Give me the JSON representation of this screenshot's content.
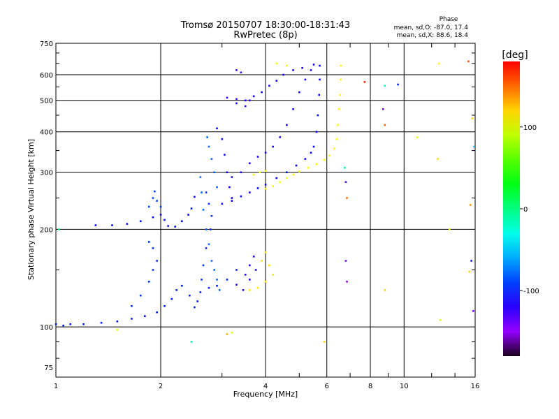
{
  "chart_data": {
    "type": "scatter",
    "title": "Tromsø 20150707 18:30:00-18:31:43",
    "subtitle": "RwPretec (8p)",
    "xlabel": "Frequency [MHz]",
    "ylabel": "Stationary phase Virtual Height [km]",
    "x_scale": "log",
    "y_scale": "log",
    "xlim": [
      1,
      16
    ],
    "ylim": [
      70,
      750
    ],
    "x_ticks": [
      1,
      2,
      4,
      6,
      8,
      10,
      16
    ],
    "x_tick_labels": [
      "1",
      "2",
      "4",
      "6",
      "8",
      "10",
      "16"
    ],
    "y_ticks": [
      75,
      100,
      200,
      300,
      400,
      500,
      600,
      750
    ],
    "y_tick_labels": [
      "75",
      "100",
      "200",
      "300",
      "400",
      "500",
      "600",
      "750"
    ],
    "grid": true,
    "phase_info": {
      "heading": "Phase",
      "line_o": "mean, sd,O: -87.0, 17.4",
      "line_x": "mean, sd,X:  88.6, 18.4"
    },
    "colorbar": {
      "label": "[deg]",
      "range": [
        -180,
        180
      ],
      "ticks": [
        100,
        0,
        -100
      ],
      "tick_labels": [
        "100",
        "0",
        "-100"
      ]
    },
    "traces": [
      {
        "phase": -100,
        "points": [
          [
            1.0,
            102
          ],
          [
            1.05,
            101
          ],
          [
            1.1,
            102
          ],
          [
            1.2,
            102
          ],
          [
            1.35,
            103
          ],
          [
            1.5,
            104
          ],
          [
            1.65,
            106
          ],
          [
            1.8,
            108
          ],
          [
            1.95,
            111
          ],
          [
            2.05,
            116
          ],
          [
            2.15,
            122
          ],
          [
            2.22,
            130
          ],
          [
            2.3,
            134
          ],
          [
            2.42,
            125
          ],
          [
            2.5,
            115
          ],
          [
            2.55,
            120
          ],
          [
            2.6,
            128
          ],
          [
            2.75,
            132
          ],
          [
            2.9,
            134
          ],
          [
            3.1,
            140
          ],
          [
            3.3,
            150
          ]
        ]
      },
      {
        "phase": -105,
        "points": [
          [
            1.3,
            206
          ],
          [
            1.45,
            206
          ],
          [
            1.6,
            208
          ],
          [
            1.75,
            212
          ],
          [
            1.9,
            218
          ],
          [
            2.0,
            222
          ],
          [
            2.05,
            214
          ],
          [
            2.1,
            205
          ],
          [
            2.2,
            204
          ],
          [
            2.3,
            212
          ],
          [
            2.4,
            222
          ],
          [
            2.45,
            232
          ],
          [
            2.5,
            252
          ]
        ]
      },
      {
        "phase": -95,
        "points": [
          [
            1.65,
            116
          ],
          [
            1.75,
            125
          ],
          [
            1.85,
            138
          ],
          [
            1.9,
            150
          ],
          [
            1.95,
            160
          ],
          [
            1.9,
            175
          ],
          [
            1.85,
            183
          ]
        ]
      },
      {
        "phase": -90,
        "points": [
          [
            1.85,
            235
          ],
          [
            1.9,
            250
          ],
          [
            1.92,
            262
          ],
          [
            1.95,
            245
          ],
          [
            2.0,
            235
          ]
        ]
      },
      {
        "phase": -80,
        "points": [
          [
            2.6,
            290
          ],
          [
            2.62,
            260
          ],
          [
            2.65,
            230
          ],
          [
            2.7,
            200
          ],
          [
            2.75,
            180
          ],
          [
            2.8,
            160
          ],
          [
            2.85,
            150
          ],
          [
            2.9,
            140
          ],
          [
            2.95,
            130
          ],
          [
            2.9,
            270
          ],
          [
            2.85,
            300
          ],
          [
            2.8,
            330
          ],
          [
            2.75,
            360
          ],
          [
            2.72,
            385
          ]
        ]
      },
      {
        "phase": -110,
        "points": [
          [
            3.0,
            240
          ],
          [
            3.2,
            245
          ],
          [
            3.4,
            253
          ],
          [
            3.6,
            260
          ],
          [
            3.8,
            268
          ],
          [
            4.0,
            275
          ],
          [
            4.3,
            288
          ],
          [
            4.6,
            300
          ],
          [
            4.9,
            315
          ],
          [
            5.2,
            330
          ],
          [
            5.4,
            345
          ],
          [
            5.5,
            360
          ],
          [
            5.6,
            400
          ],
          [
            5.65,
            450
          ],
          [
            5.7,
            520
          ],
          [
            5.72,
            580
          ],
          [
            5.72,
            640
          ]
        ]
      },
      {
        "phase": -115,
        "points": [
          [
            3.2,
            290
          ],
          [
            3.4,
            300
          ],
          [
            3.6,
            320
          ],
          [
            3.8,
            335
          ],
          [
            4.0,
            345
          ],
          [
            4.2,
            360
          ],
          [
            4.4,
            385
          ],
          [
            4.6,
            420
          ],
          [
            4.8,
            470
          ],
          [
            5.0,
            530
          ],
          [
            5.2,
            580
          ],
          [
            5.4,
            620
          ]
        ]
      },
      {
        "phase": -115,
        "points": [
          [
            3.3,
            490
          ],
          [
            3.5,
            500
          ],
          [
            3.7,
            515
          ],
          [
            3.9,
            530
          ],
          [
            4.1,
            555
          ],
          [
            4.3,
            575
          ],
          [
            4.5,
            600
          ],
          [
            4.8,
            620
          ],
          [
            5.1,
            630
          ],
          [
            5.5,
            645
          ]
        ]
      },
      {
        "phase": -112,
        "points": [
          [
            2.9,
            410
          ],
          [
            3.0,
            380
          ],
          [
            3.05,
            340
          ],
          [
            3.1,
            300
          ],
          [
            3.15,
            270
          ],
          [
            3.2,
            250
          ]
        ]
      },
      {
        "phase": -120,
        "points": [
          [
            3.5,
            145
          ],
          [
            3.6,
            155
          ],
          [
            3.7,
            165
          ],
          [
            3.75,
            150
          ],
          [
            3.6,
            140
          ],
          [
            3.45,
            130
          ],
          [
            3.3,
            135
          ]
        ]
      },
      {
        "phase": -125,
        "points": [
          [
            3.3,
            620
          ],
          [
            3.4,
            610
          ],
          [
            3.3,
            505
          ],
          [
            3.5,
            480
          ],
          [
            3.1,
            510
          ],
          [
            3.6,
            500
          ]
        ]
      },
      {
        "phase": 110,
        "points": [
          [
            4.0,
            267
          ],
          [
            4.2,
            272
          ],
          [
            4.4,
            280
          ],
          [
            4.6,
            288
          ],
          [
            4.8,
            295
          ],
          [
            5.0,
            302
          ],
          [
            5.3,
            310
          ],
          [
            5.6,
            318
          ],
          [
            5.9,
            328
          ],
          [
            6.1,
            338
          ],
          [
            6.3,
            355
          ],
          [
            6.4,
            380
          ],
          [
            6.45,
            420
          ],
          [
            6.5,
            470
          ],
          [
            6.55,
            520
          ],
          [
            6.57,
            580
          ],
          [
            6.58,
            640
          ]
        ]
      },
      {
        "phase": 115,
        "points": [
          [
            3.6,
            130
          ],
          [
            3.8,
            132
          ],
          [
            4.0,
            138
          ],
          [
            4.2,
            145
          ],
          [
            4.1,
            155
          ],
          [
            3.9,
            160
          ],
          [
            4.0,
            170
          ]
        ]
      },
      {
        "phase": 105,
        "points": [
          [
            3.7,
            295
          ],
          [
            3.85,
            300
          ],
          [
            4.0,
            303
          ],
          [
            4.3,
            650
          ],
          [
            4.6,
            640
          ]
        ]
      },
      {
        "phase": -95,
        "points": [
          [
            2.7,
            260
          ],
          [
            2.75,
            240
          ],
          [
            2.8,
            220
          ],
          [
            2.78,
            200
          ],
          [
            2.7,
            175
          ],
          [
            2.65,
            155
          ],
          [
            2.62,
            140
          ]
        ]
      }
    ],
    "outliers": [
      {
        "x": 1.02,
        "y": 200,
        "phase": 0
      },
      {
        "x": 1.5,
        "y": 98,
        "phase": 100
      },
      {
        "x": 2.45,
        "y": 90,
        "phase": -10
      },
      {
        "x": 3.2,
        "y": 96,
        "phase": 100
      },
      {
        "x": 3.1,
        "y": 95,
        "phase": 130
      },
      {
        "x": 5.9,
        "y": 90,
        "phase": 120
      },
      {
        "x": 6.75,
        "y": 310,
        "phase": -10
      },
      {
        "x": 6.8,
        "y": 280,
        "phase": -130
      },
      {
        "x": 6.85,
        "y": 250,
        "phase": 150
      },
      {
        "x": 6.8,
        "y": 160,
        "phase": -140
      },
      {
        "x": 6.85,
        "y": 138,
        "phase": -150
      },
      {
        "x": 7.7,
        "y": 570,
        "phase": 170
      },
      {
        "x": 8.7,
        "y": 470,
        "phase": -140
      },
      {
        "x": 8.8,
        "y": 420,
        "phase": 150
      },
      {
        "x": 8.8,
        "y": 555,
        "phase": -20
      },
      {
        "x": 8.8,
        "y": 130,
        "phase": 120
      },
      {
        "x": 9.6,
        "y": 560,
        "phase": -100
      },
      {
        "x": 10.9,
        "y": 385,
        "phase": 100
      },
      {
        "x": 12.6,
        "y": 650,
        "phase": 110
      },
      {
        "x": 12.5,
        "y": 330,
        "phase": 120
      },
      {
        "x": 12.7,
        "y": 105,
        "phase": 100
      },
      {
        "x": 13.5,
        "y": 200,
        "phase": 110
      },
      {
        "x": 15.3,
        "y": 660,
        "phase": 160
      },
      {
        "x": 15.5,
        "y": 238,
        "phase": 140
      },
      {
        "x": 15.6,
        "y": 160,
        "phase": -100
      },
      {
        "x": 15.4,
        "y": 148,
        "phase": 120
      },
      {
        "x": 15.8,
        "y": 112,
        "phase": -140
      },
      {
        "x": 15.9,
        "y": 360,
        "phase": -60
      },
      {
        "x": 15.7,
        "y": 440,
        "phase": 120
      }
    ]
  }
}
